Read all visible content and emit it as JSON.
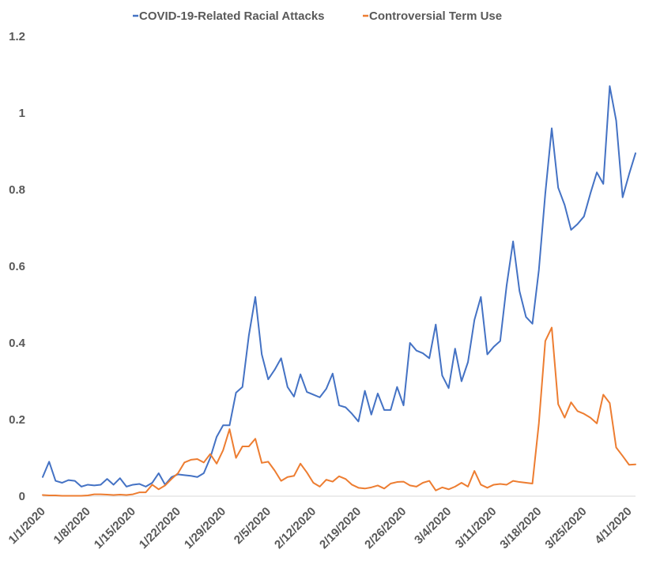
{
  "chart_data": {
    "type": "line",
    "title": "",
    "xlabel": "",
    "ylabel": "",
    "ylim": [
      0,
      1.2
    ],
    "yticks": [
      "0",
      "0.2",
      "0.4",
      "0.6",
      "0.8",
      "1",
      "1.2"
    ],
    "x_tick_labels": [
      "1/1/2020",
      "1/8/2020",
      "1/15/2020",
      "1/22/2020",
      "1/29/2020",
      "2/5/2020",
      "2/12/2020",
      "2/19/2020",
      "2/26/2020",
      "3/4/2020",
      "3/11/2020",
      "3/18/2020",
      "3/25/2020",
      "4/1/2020"
    ],
    "x_tick_index": [
      0,
      7,
      14,
      21,
      28,
      35,
      42,
      49,
      56,
      63,
      70,
      77,
      84,
      91
    ],
    "grid": false,
    "legend_position": "top",
    "series": [
      {
        "name": "COVID-19-Related Racial Attacks",
        "color": "#4472C4",
        "values": [
          0.05,
          0.09,
          0.04,
          0.035,
          0.042,
          0.04,
          0.025,
          0.03,
          0.028,
          0.03,
          0.045,
          0.03,
          0.047,
          0.025,
          0.03,
          0.032,
          0.025,
          0.035,
          0.06,
          0.03,
          0.05,
          0.057,
          0.055,
          0.053,
          0.05,
          0.06,
          0.1,
          0.155,
          0.185,
          0.185,
          0.27,
          0.285,
          0.42,
          0.52,
          0.37,
          0.305,
          0.33,
          0.36,
          0.285,
          0.26,
          0.318,
          0.272,
          0.265,
          0.258,
          0.28,
          0.32,
          0.237,
          0.232,
          0.215,
          0.195,
          0.275,
          0.213,
          0.268,
          0.225,
          0.225,
          0.285,
          0.237,
          0.4,
          0.38,
          0.373,
          0.36,
          0.448,
          0.315,
          0.282,
          0.385,
          0.3,
          0.35,
          0.46,
          0.52,
          0.37,
          0.39,
          0.405,
          0.55,
          0.665,
          0.535,
          0.468,
          0.45,
          0.59,
          0.79,
          0.96,
          0.805,
          0.76,
          0.695,
          0.71,
          0.73,
          0.79,
          0.845,
          0.815,
          1.07,
          0.98,
          0.78,
          0.84,
          0.895
        ]
      },
      {
        "name": "Controversial Term Use",
        "color": "#ED7D31",
        "values": [
          0.003,
          0.002,
          0.002,
          0.001,
          0.001,
          0.001,
          0.001,
          0.002,
          0.005,
          0.005,
          0.004,
          0.003,
          0.004,
          0.003,
          0.005,
          0.01,
          0.01,
          0.03,
          0.018,
          0.028,
          0.045,
          0.06,
          0.088,
          0.095,
          0.097,
          0.088,
          0.11,
          0.085,
          0.12,
          0.175,
          0.1,
          0.13,
          0.13,
          0.15,
          0.087,
          0.09,
          0.067,
          0.04,
          0.05,
          0.053,
          0.085,
          0.062,
          0.035,
          0.025,
          0.043,
          0.038,
          0.052,
          0.045,
          0.03,
          0.022,
          0.02,
          0.023,
          0.028,
          0.02,
          0.033,
          0.037,
          0.038,
          0.028,
          0.025,
          0.035,
          0.04,
          0.015,
          0.023,
          0.018,
          0.025,
          0.035,
          0.025,
          0.066,
          0.03,
          0.022,
          0.03,
          0.032,
          0.03,
          0.04,
          0.037,
          0.035,
          0.033,
          0.19,
          0.405,
          0.44,
          0.24,
          0.205,
          0.245,
          0.222,
          0.215,
          0.205,
          0.19,
          0.265,
          0.243,
          0.127,
          0.105,
          0.082,
          0.083
        ]
      }
    ]
  }
}
